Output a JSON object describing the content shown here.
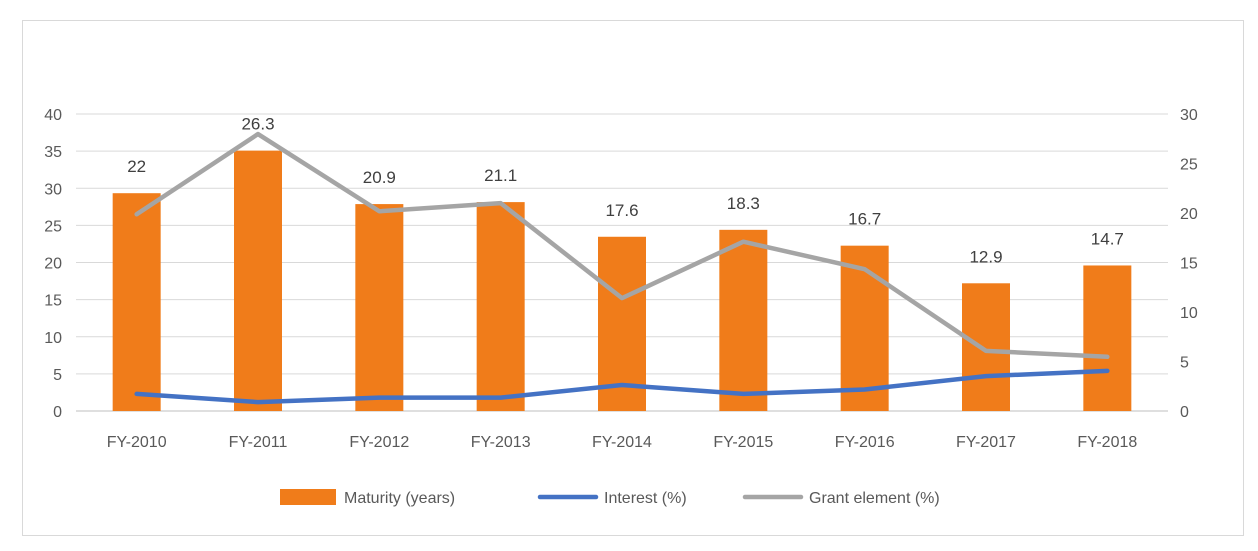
{
  "chart_data": {
    "type": "bar",
    "categories": [
      "FY-2010",
      "FY-2011",
      "FY-2012",
      "FY-2013",
      "FY-2014",
      "FY-2015",
      "FY-2016",
      "FY-2017",
      "FY-2018"
    ],
    "series": [
      {
        "name": "Maturity (years)",
        "type": "bar",
        "axis": "right",
        "values": [
          22,
          26.3,
          20.9,
          21.1,
          17.6,
          18.3,
          16.7,
          12.9,
          14.7
        ],
        "data_labels": [
          "22",
          "26.3",
          "20.9",
          "21.1",
          "17.6",
          "18.3",
          "16.7",
          "12.9",
          "14.7"
        ],
        "color": "#f07c1a"
      },
      {
        "name": "Interest (%)",
        "type": "line",
        "axis": "left",
        "values": [
          2.3,
          1.2,
          1.8,
          1.8,
          3.5,
          2.3,
          2.9,
          4.7,
          5.4
        ],
        "color": "#4472c4"
      },
      {
        "name": "Grant element (%)",
        "type": "line",
        "axis": "left",
        "values": [
          26.5,
          37.3,
          26.9,
          28,
          15.2,
          22.8,
          19.1,
          8.1,
          7.3
        ],
        "color": "#a5a5a5"
      }
    ],
    "y_left": {
      "ylim": [
        0,
        40
      ],
      "ticks": [
        "0",
        "5",
        "10",
        "15",
        "20",
        "25",
        "30",
        "35",
        "40"
      ]
    },
    "y_right": {
      "ylim": [
        0,
        30
      ],
      "ticks": [
        "0",
        "5",
        "10",
        "15",
        "20",
        "25",
        "30"
      ]
    },
    "grid": true,
    "legend": "bottom-center",
    "title": "",
    "xlabel": "",
    "ylabel": ""
  }
}
